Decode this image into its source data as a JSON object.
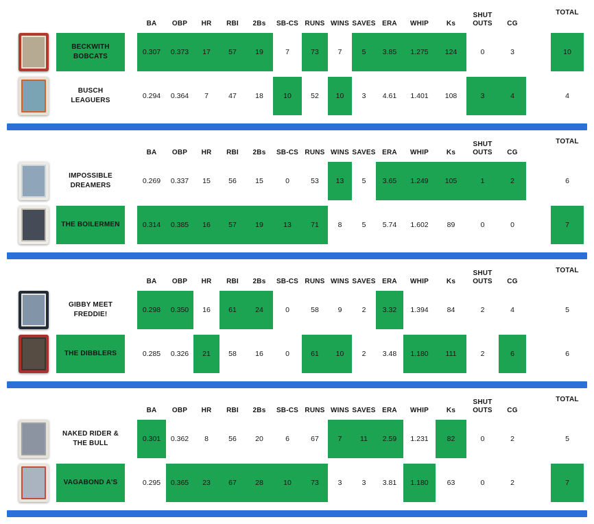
{
  "colors": {
    "win_green": "#1ca452",
    "divider_blue": "#2a70d8"
  },
  "table": {
    "stat_columns": [
      "BA",
      "OBP",
      "HR",
      "RBI",
      "2Bs",
      "SB-CS",
      "RUNS",
      "WINS",
      "SAVES",
      "ERA",
      "WHIP",
      "Ks",
      "SHUT OUTS",
      "CG"
    ],
    "total_label": "TOTAL"
  },
  "matchups": [
    {
      "teams": [
        {
          "name": "BECKWITH BOBCATS",
          "name_win": true,
          "card": {
            "frame": "#b23a2c",
            "accent": "#e8e2d2",
            "photo": "#b7aa92"
          },
          "stats": [
            {
              "v": "0.307",
              "w": true
            },
            {
              "v": "0.373",
              "w": true
            },
            {
              "v": "17",
              "w": true
            },
            {
              "v": "57",
              "w": true
            },
            {
              "v": "19",
              "w": true
            },
            {
              "v": "7",
              "w": false
            },
            {
              "v": "73",
              "w": true
            },
            {
              "v": "7",
              "w": false
            },
            {
              "v": "5",
              "w": true
            },
            {
              "v": "3.85",
              "w": true
            },
            {
              "v": "1.275",
              "w": true
            },
            {
              "v": "124",
              "w": true
            },
            {
              "v": "0",
              "w": false
            },
            {
              "v": "3",
              "w": false
            }
          ],
          "total": {
            "v": "10",
            "w": true
          }
        },
        {
          "name": "BUSCH LEAGUERS",
          "name_win": false,
          "card": {
            "frame": "#e8e1d3",
            "accent": "#d2622b",
            "photo": "#7aa3b4"
          },
          "stats": [
            {
              "v": "0.294",
              "w": false
            },
            {
              "v": "0.364",
              "w": false
            },
            {
              "v": "7",
              "w": false
            },
            {
              "v": "47",
              "w": false
            },
            {
              "v": "18",
              "w": false
            },
            {
              "v": "10",
              "w": true
            },
            {
              "v": "52",
              "w": false
            },
            {
              "v": "10",
              "w": true
            },
            {
              "v": "3",
              "w": false
            },
            {
              "v": "4.61",
              "w": false
            },
            {
              "v": "1.401",
              "w": false
            },
            {
              "v": "108",
              "w": false
            },
            {
              "v": "3",
              "w": true
            },
            {
              "v": "4",
              "w": true
            }
          ],
          "total": {
            "v": "4",
            "w": false
          }
        }
      ]
    },
    {
      "teams": [
        {
          "name": "IMPOSSIBLE DREAMERS",
          "name_win": false,
          "card": {
            "frame": "#eceae4",
            "accent": "#cfd4d8",
            "photo": "#8fa6ba"
          },
          "stats": [
            {
              "v": "0.269",
              "w": false
            },
            {
              "v": "0.337",
              "w": false
            },
            {
              "v": "15",
              "w": false
            },
            {
              "v": "56",
              "w": false
            },
            {
              "v": "15",
              "w": false
            },
            {
              "v": "0",
              "w": false
            },
            {
              "v": "53",
              "w": false
            },
            {
              "v": "13",
              "w": true
            },
            {
              "v": "5",
              "w": false
            },
            {
              "v": "3.65",
              "w": true
            },
            {
              "v": "1.249",
              "w": true
            },
            {
              "v": "105",
              "w": true
            },
            {
              "v": "1",
              "w": true
            },
            {
              "v": "2",
              "w": true
            }
          ],
          "total": {
            "v": "6",
            "w": false
          }
        },
        {
          "name": "THE BOILERMEN",
          "name_win": true,
          "card": {
            "frame": "#efece6",
            "accent": "#bdb9ae",
            "photo": "#454b57"
          },
          "stats": [
            {
              "v": "0.314",
              "w": true
            },
            {
              "v": "0.385",
              "w": true
            },
            {
              "v": "16",
              "w": true
            },
            {
              "v": "57",
              "w": true
            },
            {
              "v": "19",
              "w": true
            },
            {
              "v": "13",
              "w": true
            },
            {
              "v": "71",
              "w": true
            },
            {
              "v": "8",
              "w": false
            },
            {
              "v": "5",
              "w": false
            },
            {
              "v": "5.74",
              "w": false
            },
            {
              "v": "1.602",
              "w": false
            },
            {
              "v": "89",
              "w": false
            },
            {
              "v": "0",
              "w": false
            },
            {
              "v": "0",
              "w": false
            }
          ],
          "total": {
            "v": "7",
            "w": true
          }
        }
      ]
    },
    {
      "teams": [
        {
          "name": "GIBBY MEET FREDDIE!",
          "name_win": false,
          "card": {
            "frame": "#232b36",
            "accent": "#e8e6df",
            "photo": "#8295a8"
          },
          "stats": [
            {
              "v": "0.298",
              "w": true
            },
            {
              "v": "0.350",
              "w": true
            },
            {
              "v": "16",
              "w": false
            },
            {
              "v": "61",
              "w": true
            },
            {
              "v": "24",
              "w": true
            },
            {
              "v": "0",
              "w": false
            },
            {
              "v": "58",
              "w": false
            },
            {
              "v": "9",
              "w": false
            },
            {
              "v": "2",
              "w": false
            },
            {
              "v": "3.32",
              "w": true
            },
            {
              "v": "1.394",
              "w": false
            },
            {
              "v": "84",
              "w": false
            },
            {
              "v": "2",
              "w": false
            },
            {
              "v": "4",
              "w": false
            }
          ],
          "total": {
            "v": "5",
            "w": false
          }
        },
        {
          "name": "THE DIBBLERS",
          "name_win": true,
          "card": {
            "frame": "#ab3130",
            "accent": "#3c3631",
            "photo": "#564c43"
          },
          "stats": [
            {
              "v": "0.285",
              "w": false
            },
            {
              "v": "0.326",
              "w": false
            },
            {
              "v": "21",
              "w": true
            },
            {
              "v": "58",
              "w": false
            },
            {
              "v": "16",
              "w": false
            },
            {
              "v": "0",
              "w": false
            },
            {
              "v": "61",
              "w": true
            },
            {
              "v": "10",
              "w": true
            },
            {
              "v": "2",
              "w": false
            },
            {
              "v": "3.48",
              "w": false
            },
            {
              "v": "1.180",
              "w": true
            },
            {
              "v": "111",
              "w": true
            },
            {
              "v": "2",
              "w": false
            },
            {
              "v": "6",
              "w": true
            }
          ],
          "total": {
            "v": "6",
            "w": false
          }
        }
      ]
    },
    {
      "teams": [
        {
          "name": "NAKED RIDER & THE BULL",
          "name_win": false,
          "card": {
            "frame": "#e6e2d8",
            "accent": "#9aa1a8",
            "photo": "#8b94a0"
          },
          "stats": [
            {
              "v": "0.301",
              "w": true
            },
            {
              "v": "0.362",
              "w": false
            },
            {
              "v": "8",
              "w": false
            },
            {
              "v": "56",
              "w": false
            },
            {
              "v": "20",
              "w": false
            },
            {
              "v": "6",
              "w": false
            },
            {
              "v": "67",
              "w": false
            },
            {
              "v": "7",
              "w": true
            },
            {
              "v": "11",
              "w": true
            },
            {
              "v": "2.59",
              "w": true
            },
            {
              "v": "1.231",
              "w": false
            },
            {
              "v": "82",
              "w": true
            },
            {
              "v": "0",
              "w": false
            },
            {
              "v": "2",
              "w": false
            }
          ],
          "total": {
            "v": "5",
            "w": false
          }
        },
        {
          "name": "VAGABOND A'S",
          "name_win": true,
          "card": {
            "frame": "#eae6de",
            "accent": "#c24d3a",
            "photo": "#a9b4c0"
          },
          "stats": [
            {
              "v": "0.295",
              "w": false
            },
            {
              "v": "0.365",
              "w": true
            },
            {
              "v": "23",
              "w": true
            },
            {
              "v": "67",
              "w": true
            },
            {
              "v": "28",
              "w": true
            },
            {
              "v": "10",
              "w": true
            },
            {
              "v": "73",
              "w": true
            },
            {
              "v": "3",
              "w": false
            },
            {
              "v": "3",
              "w": false
            },
            {
              "v": "3.81",
              "w": false
            },
            {
              "v": "1.180",
              "w": true
            },
            {
              "v": "63",
              "w": false
            },
            {
              "v": "0",
              "w": false
            },
            {
              "v": "2",
              "w": false
            }
          ],
          "total": {
            "v": "7",
            "w": true
          }
        }
      ]
    }
  ]
}
